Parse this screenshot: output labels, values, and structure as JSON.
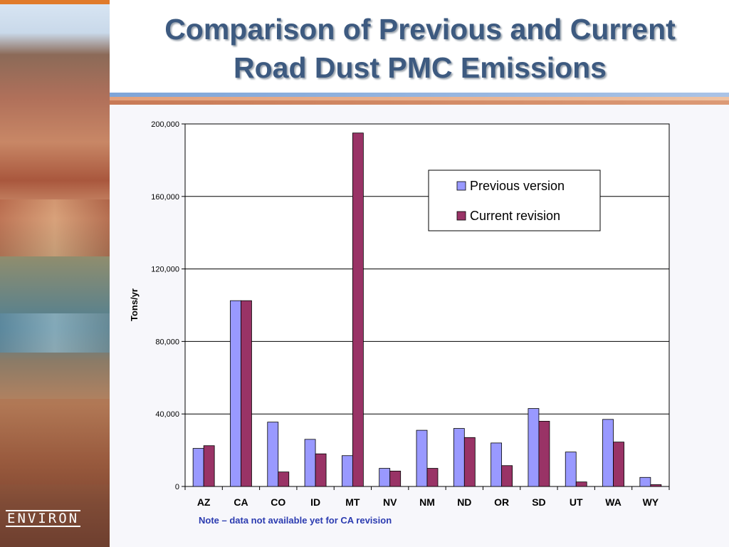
{
  "slide": {
    "title_line1": "Comparison of Previous and Current",
    "title_line2": "Road Dust PMC Emissions",
    "note": "Note – data not available yet for CA revision",
    "logo_text": "ENVIRON"
  },
  "colors": {
    "previous": "#9999ff",
    "current": "#993366",
    "title": "#3d5a80",
    "note": "#2b3bb0"
  },
  "chart_data": {
    "type": "bar",
    "title": "",
    "xlabel": "",
    "ylabel": "Tons/yr",
    "ylim": [
      0,
      200000
    ],
    "yticks": [
      0,
      40000,
      80000,
      120000,
      160000,
      200000
    ],
    "ytick_labels": [
      "0",
      "40,000",
      "80,000",
      "120,000",
      "160,000",
      "200,000"
    ],
    "grid": true,
    "legend_position": "top-right",
    "categories": [
      "AZ",
      "CA",
      "CO",
      "ID",
      "MT",
      "NV",
      "NM",
      "ND",
      "OR",
      "SD",
      "UT",
      "WA",
      "WY"
    ],
    "series": [
      {
        "name": "Previous version",
        "values": [
          21000,
          102500,
          35500,
          26000,
          17000,
          10000,
          31000,
          32000,
          24000,
          43000,
          19000,
          37000,
          5000
        ]
      },
      {
        "name": "Current revision",
        "values": [
          22500,
          102500,
          8000,
          18000,
          195000,
          8500,
          10000,
          27000,
          11500,
          36000,
          2500,
          24500,
          1000
        ]
      }
    ]
  }
}
